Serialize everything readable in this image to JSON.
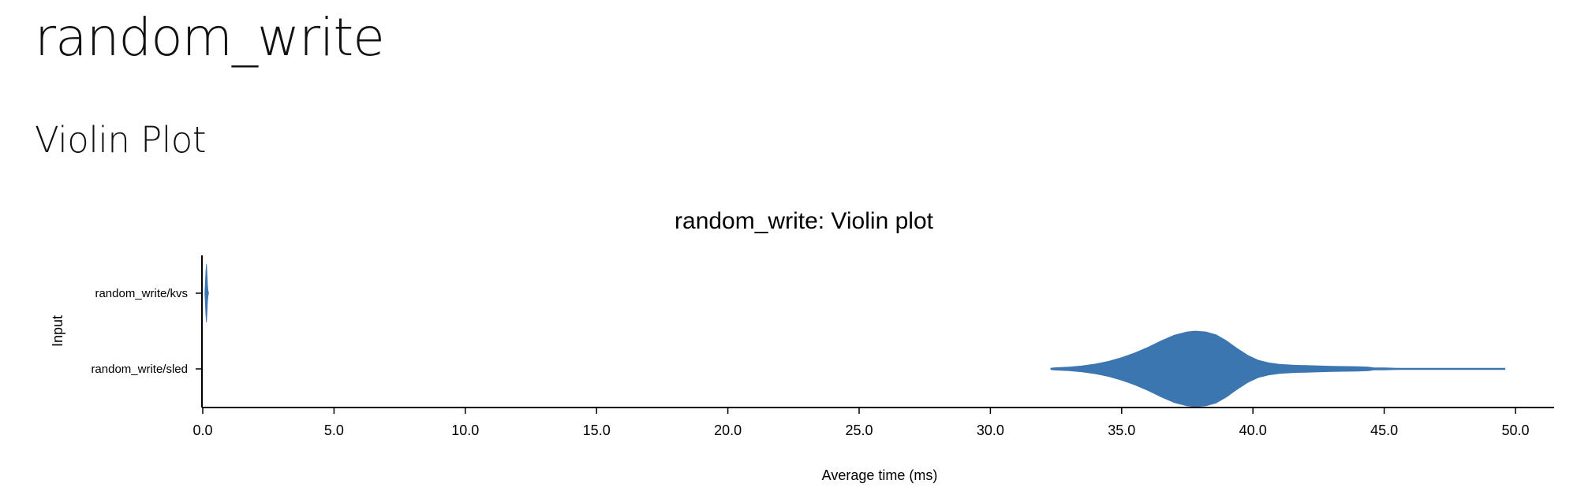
{
  "page": {
    "title": "random_write",
    "section": "Violin Plot"
  },
  "chart_data": {
    "type": "violin",
    "title": "random_write: Violin plot",
    "xlabel": "Average time (ms)",
    "ylabel": "Input",
    "xlim": [
      0.0,
      51.0
    ],
    "x_ticks": [
      "0.0",
      "5.0",
      "10.0",
      "15.0",
      "20.0",
      "25.0",
      "30.0",
      "35.0",
      "40.0",
      "45.0",
      "50.0"
    ],
    "categories": [
      "random_write/kvs",
      "random_write/sled"
    ],
    "color": "#3c76b1",
    "series": [
      {
        "name": "random_write/kvs",
        "density": [
          {
            "x": 0.08,
            "d": 0.02
          },
          {
            "x": 0.1,
            "d": 0.35
          },
          {
            "x": 0.12,
            "d": 0.75
          },
          {
            "x": 0.14,
            "d": 1.0
          },
          {
            "x": 0.16,
            "d": 0.7
          },
          {
            "x": 0.18,
            "d": 0.3
          },
          {
            "x": 0.2,
            "d": 0.08
          },
          {
            "x": 0.22,
            "d": 0.02
          }
        ]
      },
      {
        "name": "random_write/sled",
        "density": [
          {
            "x": 32.3,
            "d": 0.0
          },
          {
            "x": 32.4,
            "d": 0.03
          },
          {
            "x": 33.0,
            "d": 0.05
          },
          {
            "x": 33.5,
            "d": 0.08
          },
          {
            "x": 34.0,
            "d": 0.13
          },
          {
            "x": 34.5,
            "d": 0.2
          },
          {
            "x": 35.0,
            "d": 0.3
          },
          {
            "x": 35.5,
            "d": 0.42
          },
          {
            "x": 36.0,
            "d": 0.57
          },
          {
            "x": 36.5,
            "d": 0.74
          },
          {
            "x": 37.0,
            "d": 0.89
          },
          {
            "x": 37.5,
            "d": 0.98
          },
          {
            "x": 37.8,
            "d": 1.0
          },
          {
            "x": 38.2,
            "d": 0.98
          },
          {
            "x": 38.6,
            "d": 0.9
          },
          {
            "x": 39.0,
            "d": 0.74
          },
          {
            "x": 39.4,
            "d": 0.54
          },
          {
            "x": 39.8,
            "d": 0.36
          },
          {
            "x": 40.2,
            "d": 0.23
          },
          {
            "x": 40.6,
            "d": 0.16
          },
          {
            "x": 41.0,
            "d": 0.12
          },
          {
            "x": 41.5,
            "d": 0.1
          },
          {
            "x": 42.0,
            "d": 0.09
          },
          {
            "x": 42.5,
            "d": 0.08
          },
          {
            "x": 43.0,
            "d": 0.07
          },
          {
            "x": 43.5,
            "d": 0.065
          },
          {
            "x": 44.0,
            "d": 0.06
          },
          {
            "x": 44.4,
            "d": 0.05
          },
          {
            "x": 44.6,
            "d": 0.03
          },
          {
            "x": 45.0,
            "d": 0.03
          },
          {
            "x": 45.5,
            "d": 0.015
          },
          {
            "x": 45.8,
            "d": 0.015
          },
          {
            "x": 45.9,
            "d": 0.0
          },
          {
            "x": 47.4,
            "d": 0.0
          },
          {
            "x": 47.5,
            "d": 0.01
          },
          {
            "x": 49.5,
            "d": 0.01
          },
          {
            "x": 49.6,
            "d": 0.0
          }
        ]
      }
    ]
  }
}
